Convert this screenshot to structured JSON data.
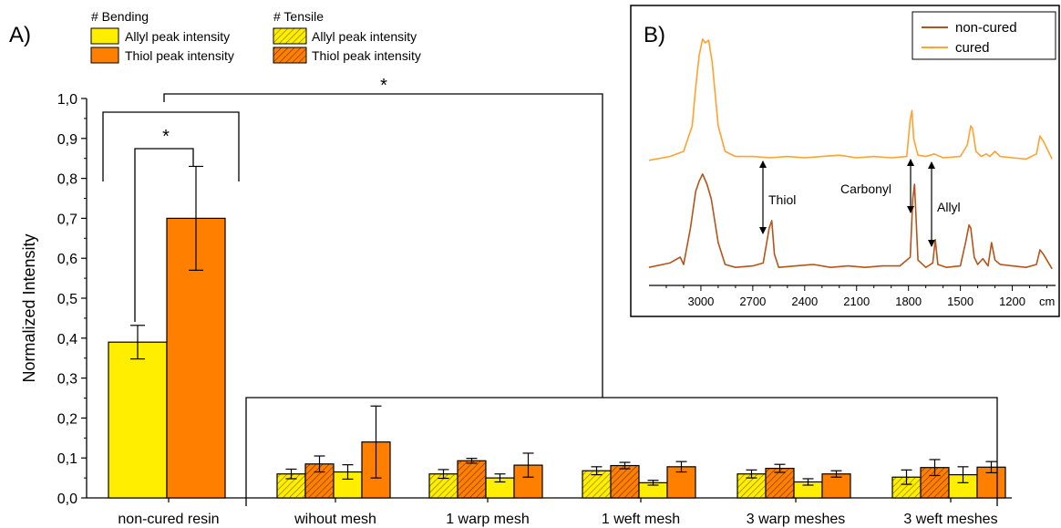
{
  "panel_a": {
    "label": "A)",
    "legend": {
      "groups": [
        {
          "title": "# Bending",
          "entries": [
            "Allyl peak intensity",
            "Thiol peak intensity"
          ]
        },
        {
          "title": "# Tensile",
          "entries": [
            "Allyl peak intensity",
            "Thiol peak intensity"
          ]
        }
      ]
    },
    "significance": [
      "*",
      "*"
    ]
  },
  "panel_b": {
    "label": "B)",
    "annotations": [
      "Thiol",
      "Carbonyl",
      "Allyl"
    ]
  },
  "colors": {
    "allyl": "#ffee00",
    "thiol": "#ff7f00",
    "cured": "#ffa230",
    "noncured": "#b5541a"
  },
  "chart_data": [
    {
      "type": "bar",
      "categories": [
        "non-cured resin",
        "wihout mesh",
        "1 warp mesh",
        "1 weft mesh",
        "3 warp meshes",
        "3 weft meshes"
      ],
      "ylabel": "Normalized Intensity",
      "xlabel": "",
      "ylim": [
        0,
        1.0
      ],
      "yticks": [
        "0,0",
        "0,1",
        "0,2",
        "0,3",
        "0,4",
        "0,5",
        "0,6",
        "0,7",
        "0,8",
        "0,9",
        "1,0"
      ],
      "series": [
        {
          "name": "Allyl peak intensity",
          "group": "# Bending",
          "hatched": false,
          "values": [
            0.39,
            0.065,
            0.05,
            0.038,
            0.04,
            0.058
          ],
          "errors": [
            0.042,
            0.018,
            0.01,
            0.006,
            0.008,
            0.02
          ]
        },
        {
          "name": "Thiol peak intensity",
          "group": "# Bending",
          "hatched": false,
          "values": [
            0.7,
            0.14,
            0.082,
            0.078,
            0.06,
            0.077
          ],
          "errors": [
            0.13,
            0.09,
            0.03,
            0.013,
            0.008,
            0.014
          ]
        },
        {
          "name": "Allyl peak intensity",
          "group": "# Tensile",
          "hatched": true,
          "values": [
            null,
            0.06,
            0.06,
            0.068,
            0.06,
            0.052
          ],
          "errors": [
            null,
            0.012,
            0.011,
            0.01,
            0.01,
            0.018
          ]
        },
        {
          "name": "Thiol peak intensity",
          "group": "# Tensile",
          "hatched": true,
          "values": [
            null,
            0.085,
            0.093,
            0.081,
            0.074,
            0.076
          ],
          "errors": [
            null,
            0.02,
            0.006,
            0.008,
            0.01,
            0.02
          ]
        }
      ],
      "grid": false,
      "legend_position": "top-left"
    },
    {
      "type": "line",
      "x_ticks": [
        "3000",
        "2700",
        "2400",
        "2100",
        "1800",
        "1500",
        "1200"
      ],
      "x_unit": "cm",
      "xlim": [
        3300,
        950
      ],
      "grid": false,
      "legend_position": "top-right",
      "series": [
        {
          "name": "non-cured",
          "color": "#b5541a",
          "x": [
            3300,
            3180,
            3120,
            3100,
            3060,
            3030,
            3010,
            2990,
            2965,
            2940,
            2900,
            2860,
            2800,
            2700,
            2640,
            2605,
            2590,
            2575,
            2550,
            2450,
            2350,
            2250,
            2150,
            2050,
            1950,
            1850,
            1790,
            1775,
            1765,
            1745,
            1700,
            1660,
            1645,
            1630,
            1580,
            1500,
            1470,
            1450,
            1440,
            1420,
            1400,
            1370,
            1340,
            1320,
            1300,
            1270,
            1200,
            1120,
            1060,
            1040,
            1020,
            970
          ],
          "y": [
            0.03,
            0.06,
            0.1,
            0.05,
            0.3,
            0.55,
            0.62,
            0.67,
            0.6,
            0.5,
            0.2,
            0.05,
            0.03,
            0.04,
            0.06,
            0.3,
            0.35,
            0.12,
            0.03,
            0.04,
            0.05,
            0.03,
            0.04,
            0.03,
            0.04,
            0.04,
            0.1,
            0.5,
            0.6,
            0.08,
            0.03,
            0.06,
            0.22,
            0.05,
            0.03,
            0.04,
            0.2,
            0.32,
            0.3,
            0.1,
            0.05,
            0.09,
            0.04,
            0.2,
            0.08,
            0.05,
            0.04,
            0.03,
            0.05,
            0.15,
            0.12,
            0.02
          ]
        },
        {
          "name": "cured",
          "color": "#ffa230",
          "x": [
            3300,
            3180,
            3100,
            3050,
            3030,
            3010,
            2990,
            2975,
            2955,
            2935,
            2900,
            2860,
            2800,
            2700,
            2600,
            2500,
            2400,
            2300,
            2200,
            2100,
            2000,
            1900,
            1810,
            1790,
            1780,
            1770,
            1745,
            1700,
            1650,
            1600,
            1500,
            1460,
            1440,
            1430,
            1410,
            1380,
            1350,
            1330,
            1300,
            1270,
            1200,
            1120,
            1060,
            1040,
            1020,
            970
          ],
          "y": [
            0.03,
            0.06,
            0.1,
            0.3,
            0.6,
            0.85,
            0.98,
            0.95,
            0.97,
            0.8,
            0.3,
            0.1,
            0.06,
            0.06,
            0.05,
            0.06,
            0.05,
            0.06,
            0.07,
            0.05,
            0.06,
            0.05,
            0.06,
            0.35,
            0.42,
            0.2,
            0.07,
            0.06,
            0.08,
            0.05,
            0.06,
            0.15,
            0.3,
            0.28,
            0.1,
            0.06,
            0.08,
            0.06,
            0.1,
            0.06,
            0.05,
            0.04,
            0.08,
            0.22,
            0.18,
            0.04
          ]
        }
      ]
    }
  ]
}
